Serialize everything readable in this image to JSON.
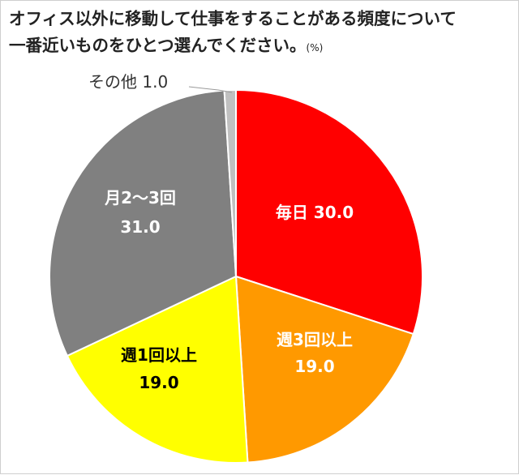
{
  "chart_data": {
    "type": "pie",
    "title_line1": "オフィス以外に移動して仕事をすることがある頻度について",
    "title_line2": "一番近いものをひとつ選んでください。",
    "unit": "(%)",
    "slices": [
      {
        "label": "毎日",
        "value": "30.0",
        "num": 30.0,
        "color": "#ff0000"
      },
      {
        "label": "週3回以上",
        "value": "19.0",
        "num": 19.0,
        "color": "#ff9900"
      },
      {
        "label": "週1回以上",
        "value": "19.0",
        "num": 19.0,
        "color": "#ffff00"
      },
      {
        "label": "月2～3回",
        "value": "31.0",
        "num": 31.0,
        "color": "#808080"
      },
      {
        "label": "その他",
        "value": "1.0",
        "num": 1.0,
        "color": "#c0c0c0"
      }
    ]
  }
}
